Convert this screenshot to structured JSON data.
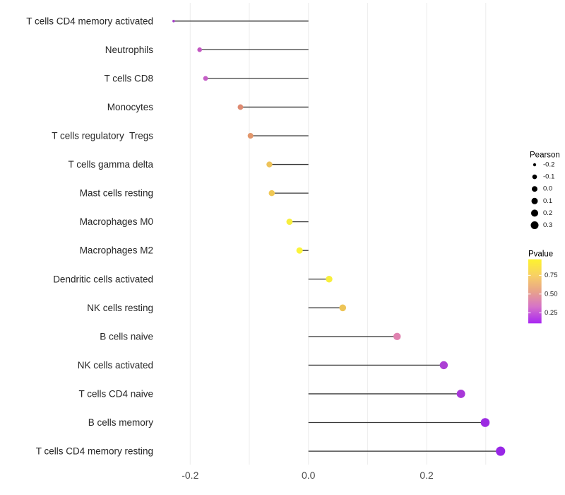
{
  "figure": {
    "background": "#ffffff"
  },
  "chart_data": {
    "type": "lollipop",
    "orientation": "horizontal",
    "title": "",
    "xlabel": "",
    "ylabel": "",
    "xlim": [
      -0.255,
      0.425
    ],
    "x_ticks": [
      -0.2,
      0.0,
      0.2
    ],
    "x_tick_labels": [
      "-0.2",
      "0.0",
      "0.2"
    ],
    "x_gridlines": [
      -0.2,
      -0.1,
      0.0,
      0.1,
      0.2,
      0.3
    ],
    "baseline": 0,
    "grid": true,
    "legend_position": "right",
    "categories": [
      "T cells CD4 memory activated",
      "Neutrophils",
      "T cells CD8",
      "Monocytes",
      "T cells regulatory  Tregs",
      "T cells gamma delta",
      "Mast cells resting",
      "Macrophages M0",
      "Macrophages M2",
      "Dendritic cells activated",
      "NK cells resting",
      "B cells naive",
      "NK cells activated",
      "T cells CD4 naive",
      "B cells memory",
      "T cells CD4 memory resting"
    ],
    "values": [
      -0.228,
      -0.184,
      -0.174,
      -0.115,
      -0.098,
      -0.066,
      -0.062,
      -0.032,
      -0.015,
      0.035,
      0.058,
      0.15,
      0.229,
      0.258,
      0.299,
      0.325
    ],
    "points": [
      {
        "label": "T cells CD4 memory activated",
        "pearson": -0.228,
        "color": "#a640c8",
        "diameter": 3.6
      },
      {
        "label": "Neutrophils",
        "pearson": -0.184,
        "color": "#c358c2",
        "diameter": 6.6
      },
      {
        "label": "T cells CD8",
        "pearson": -0.174,
        "color": "#c55ec6",
        "diameter": 6.8
      },
      {
        "label": "Monocytes",
        "pearson": -0.115,
        "color": "#de8a71",
        "diameter": 7.8
      },
      {
        "label": "T cells regulatory  Tregs",
        "pearson": -0.098,
        "color": "#e2976c",
        "diameter": 8.0
      },
      {
        "label": "T cells gamma delta",
        "pearson": -0.066,
        "color": "#eec35a",
        "diameter": 8.4
      },
      {
        "label": "Mast cells resting",
        "pearson": -0.062,
        "color": "#f0c854",
        "diameter": 8.5
      },
      {
        "label": "Macrophages M0",
        "pearson": -0.032,
        "color": "#f7ee3e",
        "diameter": 8.8
      },
      {
        "label": "Macrophages M2",
        "pearson": -0.015,
        "color": "#fbf43b",
        "diameter": 9.0
      },
      {
        "label": "Dendritic cells activated",
        "pearson": 0.035,
        "color": "#f8ef3c",
        "diameter": 9.4
      },
      {
        "label": "NK cells resting",
        "pearson": 0.058,
        "color": "#edc457",
        "diameter": 9.6
      },
      {
        "label": "B cells naive",
        "pearson": 0.15,
        "color": "#e082b0",
        "diameter": 10.4
      },
      {
        "label": "NK cells activated",
        "pearson": 0.229,
        "color": "#ac40d4",
        "diameter": 11.4
      },
      {
        "label": "T cells CD4 naive",
        "pearson": 0.258,
        "color": "#a737d8",
        "diameter": 11.9
      },
      {
        "label": "B cells memory",
        "pearson": 0.299,
        "color": "#9c2be2",
        "diameter": 12.6
      },
      {
        "label": "T cells CD4 memory resting",
        "pearson": 0.325,
        "color": "#9827e6",
        "diameter": 13.2
      }
    ]
  },
  "legends": {
    "size": {
      "title": "Pearson",
      "entries": [
        {
          "label": "-0.2",
          "diameter": 4.4
        },
        {
          "label": "-0.1",
          "diameter": 6.6
        },
        {
          "label": "0.0",
          "diameter": 8.0
        },
        {
          "label": "0.1",
          "diameter": 9.0
        },
        {
          "label": "0.2",
          "diameter": 10.0
        },
        {
          "label": "0.3",
          "diameter": 11.0
        }
      ]
    },
    "color": {
      "title": "Pvalue",
      "tick_labels": [
        "0.75",
        "0.50",
        "0.25"
      ],
      "gradient_top_to_bottom": [
        "#fdf32e",
        "#f7cf66",
        "#e8a38a",
        "#d673c8",
        "#a826f2"
      ]
    }
  },
  "style": {
    "grid_color": "#ececec",
    "stem_color": "#3a3a3a",
    "axis_text_color": "#4d4d4d",
    "category_text_color": "#262626",
    "legend_text_color": "#1a1a1a",
    "legend_dot_color": "#000000"
  }
}
